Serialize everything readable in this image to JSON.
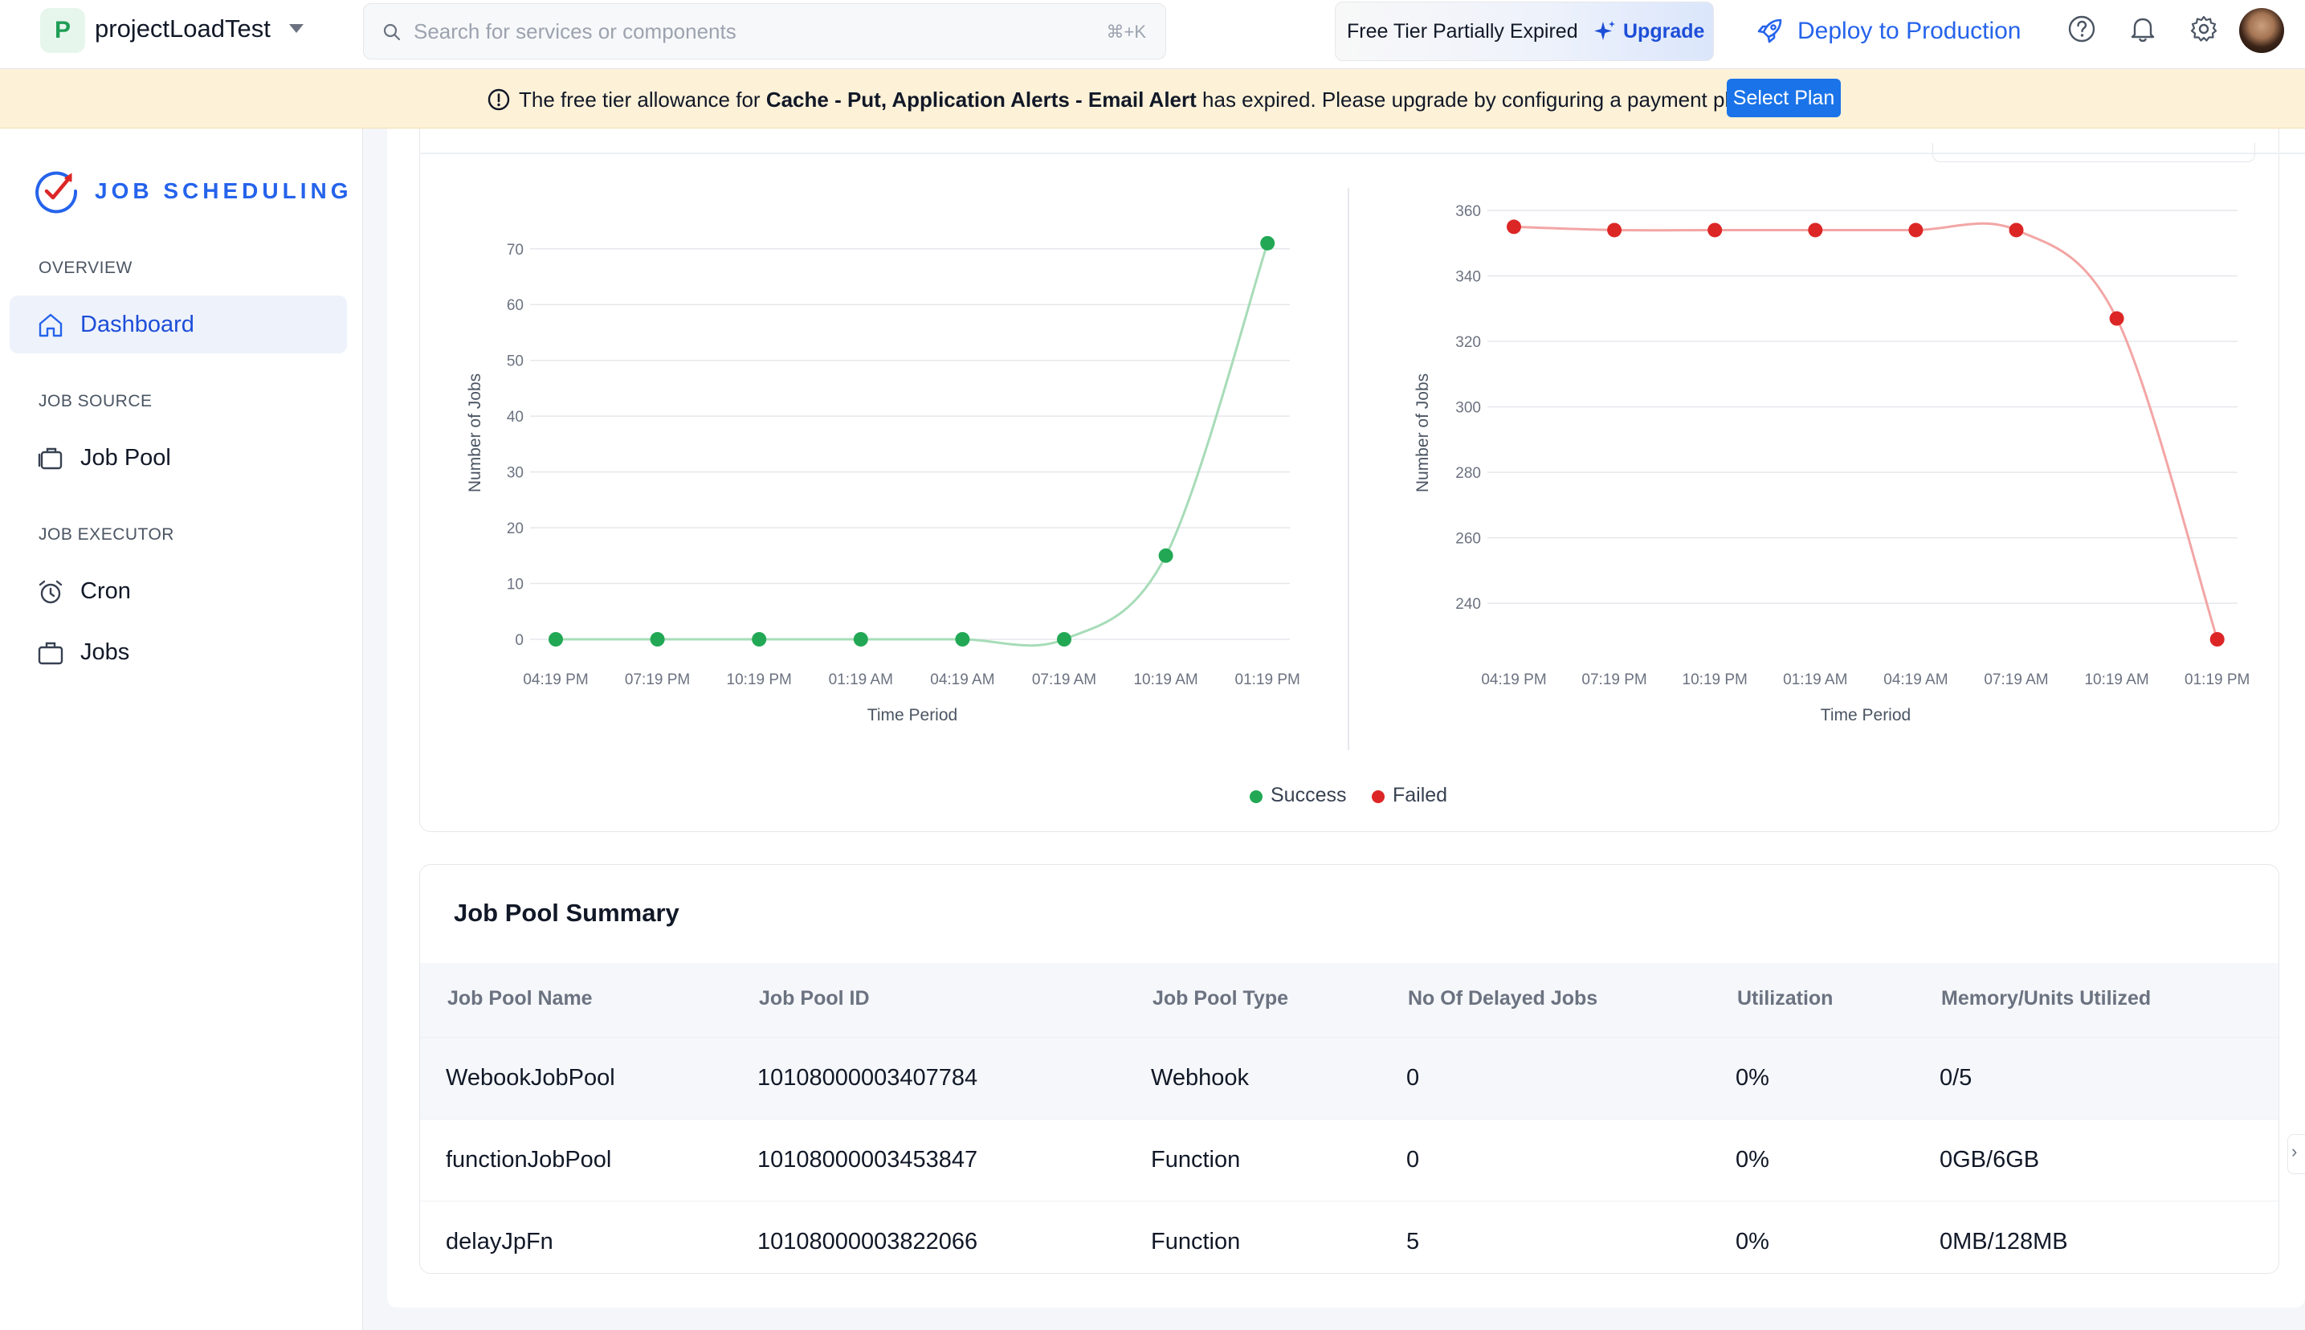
{
  "header": {
    "project_initial": "P",
    "project_name": "projectLoadTest",
    "search_placeholder": "Search for services or components",
    "search_shortcut": "⌘+K",
    "free_tier_label": "Free Tier Partially Expired",
    "upgrade_label": "Upgrade",
    "deploy_label": "Deploy to Production"
  },
  "banner": {
    "prefix": "The free tier allowance for ",
    "services": "Cache - Put, Application Alerts - Email Alert",
    "suffix": " has expired. Please upgrade by configuring a payment plan.",
    "button_label": "Select Plan"
  },
  "sidebar": {
    "brand": "JOB SCHEDULING",
    "sections": [
      {
        "label": "OVERVIEW",
        "items": [
          {
            "label": "Dashboard",
            "icon": "home-icon",
            "active": true
          }
        ]
      },
      {
        "label": "JOB SOURCE",
        "items": [
          {
            "label": "Job Pool",
            "icon": "job-pool-icon",
            "active": false
          }
        ]
      },
      {
        "label": "JOB EXECUTOR",
        "items": [
          {
            "label": "Cron",
            "icon": "alarm-clock-icon",
            "active": false
          },
          {
            "label": "Jobs",
            "icon": "briefcase-icon",
            "active": false
          }
        ]
      }
    ]
  },
  "charts": {
    "legend": [
      {
        "label": "Success",
        "color": "#22a855"
      },
      {
        "label": "Failed",
        "color": "#dc2626"
      }
    ]
  },
  "chart_data": [
    {
      "type": "line",
      "x": [
        "04:19 PM",
        "07:19 PM",
        "10:19 PM",
        "01:19 AM",
        "04:19 AM",
        "07:19 AM",
        "10:19 AM",
        "01:19 PM"
      ],
      "series": [
        {
          "name": "Success",
          "values": [
            0,
            0,
            0,
            0,
            0,
            0,
            15,
            71
          ],
          "color": "#22a855"
        }
      ],
      "xlabel": "Time Period",
      "ylabel": "Number of Jobs",
      "yticks": [
        0,
        10,
        20,
        30,
        40,
        50,
        60,
        70
      ],
      "ylim": [
        0,
        74
      ],
      "grid": true
    },
    {
      "type": "line",
      "x": [
        "04:19 PM",
        "07:19 PM",
        "10:19 PM",
        "01:19 AM",
        "04:19 AM",
        "07:19 AM",
        "10:19 AM",
        "01:19 PM"
      ],
      "series": [
        {
          "name": "Failed",
          "values": [
            355,
            354,
            354,
            354,
            354,
            354,
            327,
            229
          ],
          "color": "#dc2626"
        }
      ],
      "xlabel": "Time Period",
      "ylabel": "Number of Jobs",
      "yticks": [
        240,
        260,
        280,
        300,
        320,
        340,
        360
      ],
      "ylim": [
        229,
        360
      ],
      "grid": true
    }
  ],
  "job_pool_summary": {
    "title": "Job Pool Summary",
    "columns": [
      "Job Pool Name",
      "Job Pool ID",
      "Job Pool Type",
      "No Of Delayed Jobs",
      "Utilization",
      "Memory/Units Utilized"
    ],
    "rows": [
      [
        "WebookJobPool",
        "10108000003407784",
        "Webhook",
        "0",
        "0%",
        "0/5"
      ],
      [
        "functionJobPool",
        "10108000003453847",
        "Function",
        "0",
        "0%",
        "0GB/6GB"
      ],
      [
        "delayJpFn",
        "10108000003822066",
        "Function",
        "5",
        "0%",
        "0MB/128MB"
      ]
    ]
  }
}
